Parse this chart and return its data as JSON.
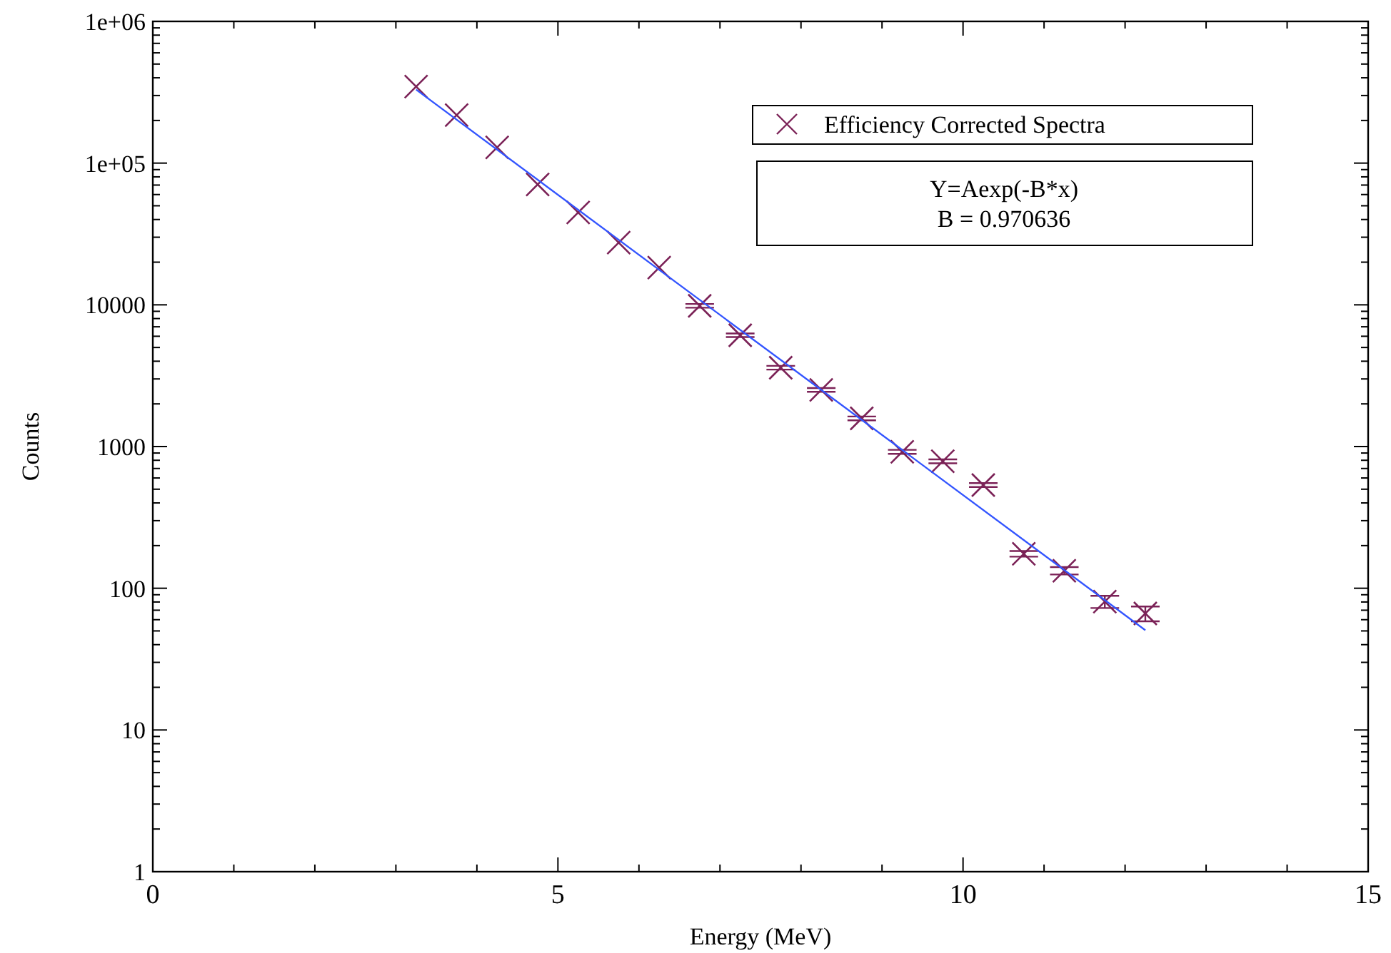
{
  "chart_data": {
    "type": "scatter",
    "xlabel": "Energy (MeV)",
    "ylabel": "Counts",
    "log": "y",
    "xlim": [
      0,
      15
    ],
    "ylim": [
      1,
      1000000
    ],
    "xticks": [
      0,
      {
        "value": 1,
        "label": null
      },
      {
        "value": 2,
        "label": null
      },
      {
        "value": 3,
        "label": null
      },
      {
        "value": 4,
        "label": null
      },
      5,
      {
        "value": 6,
        "label": null
      },
      {
        "value": 7,
        "label": null
      },
      {
        "value": 8,
        "label": null
      },
      {
        "value": 9,
        "label": null
      },
      10,
      {
        "value": 11,
        "label": null
      },
      {
        "value": 12,
        "label": null
      },
      {
        "value": 13,
        "label": null
      },
      {
        "value": 14,
        "label": null
      },
      15
    ],
    "yticks": [
      1,
      {
        "value": 2,
        "label": null
      },
      {
        "value": 3,
        "label": null
      },
      {
        "value": 4,
        "label": null
      },
      {
        "value": 5,
        "label": null
      },
      {
        "value": 6,
        "label": null
      },
      {
        "value": 7,
        "label": null
      },
      {
        "value": 8,
        "label": null
      },
      {
        "value": 9,
        "label": null
      },
      10,
      {
        "value": 20,
        "label": null
      },
      {
        "value": 30,
        "label": null
      },
      {
        "value": 40,
        "label": null
      },
      {
        "value": 50,
        "label": null
      },
      {
        "value": 60,
        "label": null
      },
      {
        "value": 70,
        "label": null
      },
      {
        "value": 80,
        "label": null
      },
      {
        "value": 90,
        "label": null
      },
      100,
      {
        "value": 200,
        "label": null
      },
      {
        "value": 300,
        "label": null
      },
      {
        "value": 400,
        "label": null
      },
      {
        "value": 500,
        "label": null
      },
      {
        "value": 600,
        "label": null
      },
      {
        "value": 700,
        "label": null
      },
      {
        "value": 800,
        "label": null
      },
      {
        "value": 900,
        "label": null
      },
      1000,
      {
        "value": 2000,
        "label": null
      },
      {
        "value": 3000,
        "label": null
      },
      {
        "value": 4000,
        "label": null
      },
      {
        "value": 5000,
        "label": null
      },
      {
        "value": 6000,
        "label": null
      },
      {
        "value": 7000,
        "label": null
      },
      {
        "value": 8000,
        "label": null
      },
      {
        "value": 9000,
        "label": null
      },
      10000,
      {
        "value": 20000,
        "label": null
      },
      {
        "value": 30000,
        "label": null
      },
      {
        "value": 40000,
        "label": null
      },
      {
        "value": 50000,
        "label": null
      },
      {
        "value": 60000,
        "label": null
      },
      {
        "value": 70000,
        "label": null
      },
      {
        "value": 80000,
        "label": null
      },
      {
        "value": 90000,
        "label": null
      },
      {
        "value": 100000,
        "label": "1e+05"
      },
      {
        "value": 200000,
        "label": null
      },
      {
        "value": 300000,
        "label": null
      },
      {
        "value": 400000,
        "label": null
      },
      {
        "value": 500000,
        "label": null
      },
      {
        "value": 600000,
        "label": null
      },
      {
        "value": 700000,
        "label": null
      },
      {
        "value": 800000,
        "label": null
      },
      {
        "value": 900000,
        "label": null
      },
      {
        "value": 1000000,
        "label": "1e+06"
      }
    ],
    "grid": false,
    "legend": "top right",
    "annotations": [
      "Y=Aexp(-B*x)",
      "B = 0.970636"
    ],
    "series": [
      {
        "name": "Efficiency Corrected Spectra",
        "marker": "cross",
        "color": "#7b2257",
        "x": [
          3.25,
          3.75,
          4.25,
          4.75,
          5.25,
          5.75,
          6.25,
          6.75,
          7.25,
          7.75,
          8.25,
          8.75,
          9.25,
          9.75,
          10.25,
          10.75,
          11.25,
          11.75,
          12.25
        ],
        "values": [
          347000,
          218000,
          129000,
          70700,
          44800,
          27500,
          18300,
          9840,
          6100,
          3600,
          2510,
          1580,
          918,
          787,
          535,
          175,
          133,
          80.5,
          66.4
        ],
        "errors": [
          null,
          null,
          null,
          null,
          null,
          null,
          null,
          300,
          180,
          110,
          75,
          50,
          30,
          25,
          17,
          8,
          8,
          8,
          8
        ]
      },
      {
        "type": "line",
        "marker": "none",
        "line_style": "solid",
        "color": "#3355ff",
        "x": [
          3.25,
          12.25
        ],
        "values": [
          330000,
          50.6
        ]
      }
    ]
  }
}
